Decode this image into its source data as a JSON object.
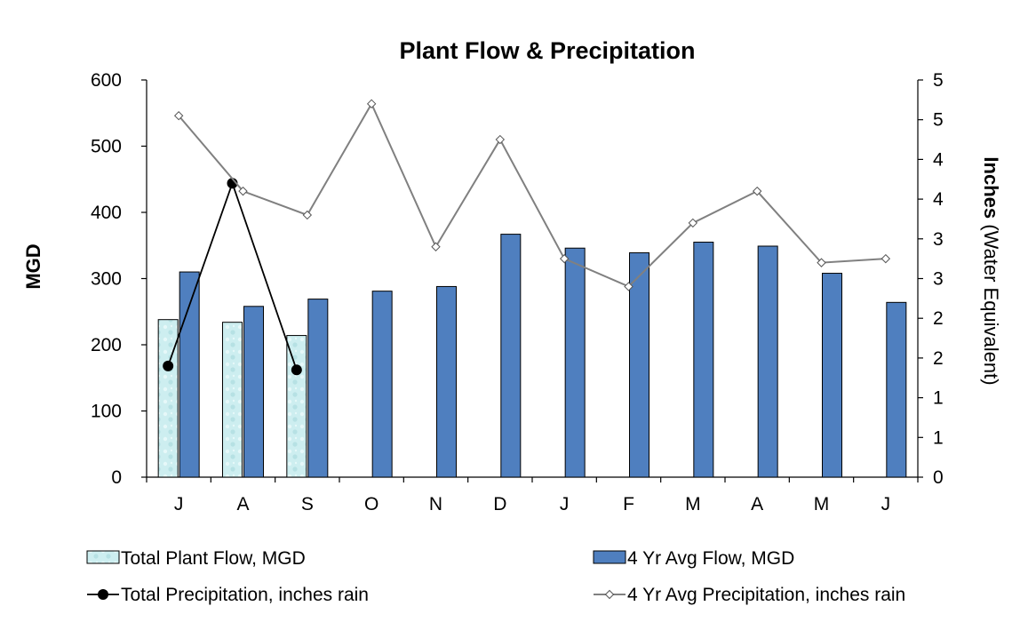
{
  "chart_data": {
    "type": "bar",
    "title": "Plant Flow & Precipitation",
    "categories": [
      "J",
      "A",
      "S",
      "O",
      "N",
      "D",
      "J",
      "F",
      "M",
      "A",
      "M",
      "J"
    ],
    "y_left": {
      "label": "MGD",
      "min": 0,
      "max": 600,
      "ticks": [
        "0",
        "100",
        "200",
        "300",
        "400",
        "500",
        "600"
      ]
    },
    "y_right": {
      "label_bold": "Inches",
      "label_rest": " (Water Equivalent)",
      "min": 0,
      "max": 5,
      "ticks": [
        "0",
        "1",
        "1",
        "2",
        "2",
        "3",
        "3",
        "4",
        "4",
        "5",
        "5"
      ]
    },
    "series": [
      {
        "name": "Total Plant Flow, MGD",
        "kind": "bar",
        "axis": "left",
        "color": "#cdeef0",
        "values": [
          238,
          234,
          214,
          null,
          null,
          null,
          null,
          null,
          null,
          null,
          null,
          null
        ]
      },
      {
        "name": "4 Yr Avg Flow, MGD",
        "kind": "bar",
        "axis": "left",
        "color": "#4f7fbf",
        "values": [
          310,
          258,
          269,
          281,
          288,
          367,
          346,
          339,
          355,
          349,
          308,
          264
        ]
      },
      {
        "name": "Total Precipitation, inches rain",
        "kind": "line",
        "axis": "right",
        "color": "#000000",
        "marker": "circle",
        "values": [
          1.4,
          3.7,
          1.35,
          null,
          null,
          null,
          null,
          null,
          null,
          null,
          null,
          null
        ]
      },
      {
        "name": "4 Yr Avg Precipitation, inches rain",
        "kind": "line",
        "axis": "right",
        "color": "#808080",
        "marker": "diamond",
        "values": [
          4.55,
          3.6,
          3.3,
          4.7,
          2.9,
          4.25,
          2.75,
          2.4,
          3.2,
          3.6,
          2.7,
          2.75
        ]
      }
    ],
    "legend": [
      "Total Plant Flow, MGD",
      "4 Yr Avg Flow, MGD",
      "Total Precipitation, inches rain",
      "4 Yr Avg Precipitation, inches rain"
    ],
    "legend_position": "bottom",
    "grid": false
  }
}
